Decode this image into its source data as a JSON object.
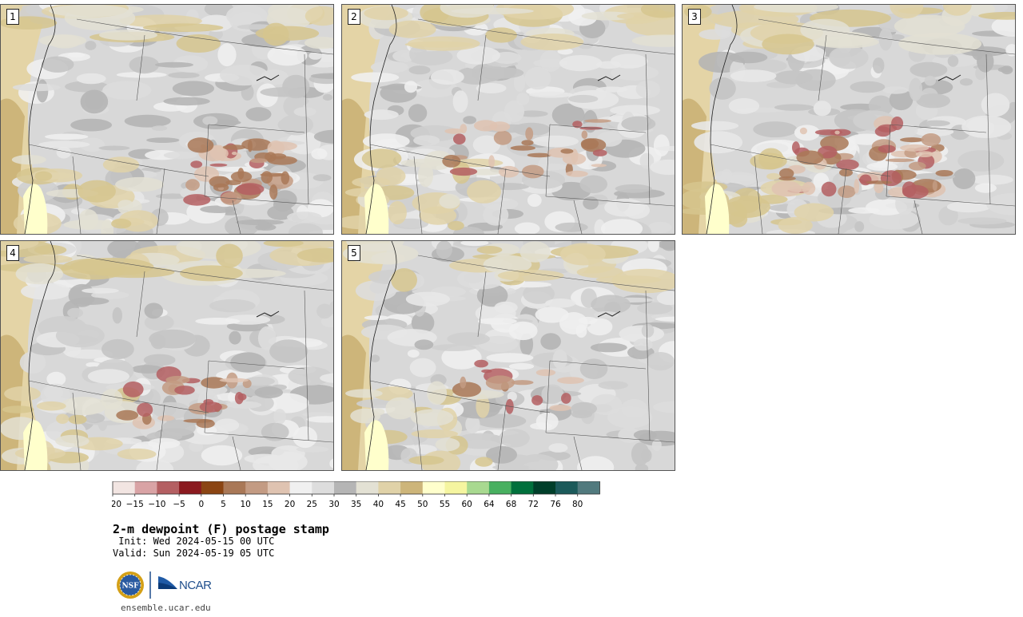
{
  "panels": [
    {
      "label": "1",
      "brown_blobs": "central-east"
    },
    {
      "label": "2",
      "brown_blobs": "central"
    },
    {
      "label": "3",
      "brown_blobs": "central-strong"
    },
    {
      "label": "4",
      "brown_blobs": "central-light"
    },
    {
      "label": "5",
      "brown_blobs": "faint"
    }
  ],
  "colorbar": {
    "ticks": [
      "−20",
      "−15",
      "−10",
      "−5",
      "0",
      "5",
      "10",
      "15",
      "20",
      "25",
      "30",
      "35",
      "40",
      "45",
      "50",
      "55",
      "60",
      "64",
      "68",
      "72",
      "76",
      "80"
    ],
    "colors": [
      "#f2e5e2",
      "#d9a3a5",
      "#b45f62",
      "#8b1a1f",
      "#8b4513",
      "#a97857",
      "#c39b83",
      "#dfc3b1",
      "#f0f0f0",
      "#dddddd",
      "#b5b5b5",
      "#e3e1d4",
      "#e0d2a8",
      "#cdb57a",
      "#ffffcc",
      "#f5f5a0",
      "#a8d990",
      "#48b060",
      "#00703c",
      "#003f2a",
      "#1b5a5a",
      "#517a7e"
    ]
  },
  "text": {
    "title": "2-m dewpoint (F) postage stamp",
    "init": " Init: Wed 2024-05-15 00 UTC",
    "valid": "Valid: Sun 2024-05-19 05 UTC",
    "logo_nsf": "NSF",
    "logo_ncar": "NCAR",
    "url": "ensemble.ucar.edu"
  }
}
